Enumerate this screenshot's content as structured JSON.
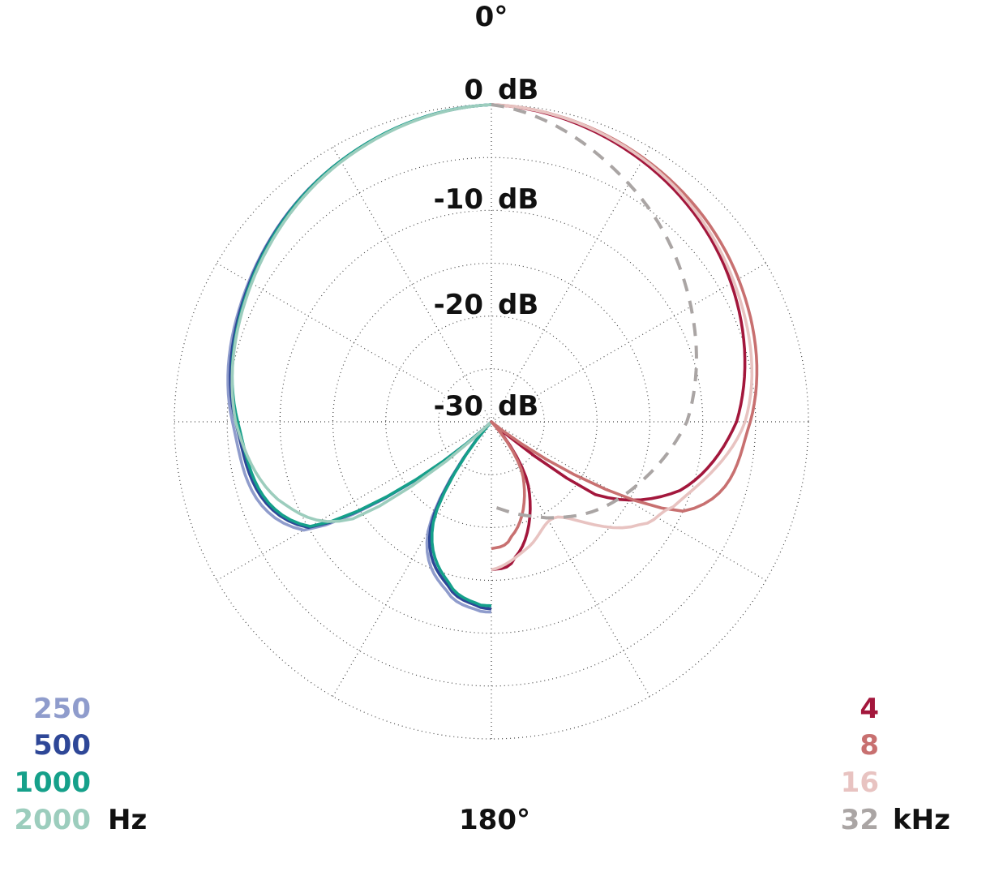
{
  "chart_data": {
    "type": "polar",
    "angle_labels": {
      "top": "0°",
      "bottom": "180°"
    },
    "radial_unit": "dB",
    "radial_range": [
      -30,
      0
    ],
    "radial_labels": [
      {
        "db": 0,
        "text": "0 dB"
      },
      {
        "db": -10,
        "text": "-10 dB"
      },
      {
        "db": -20,
        "text": "-20 dB"
      },
      {
        "db": -30,
        "text": "-30 dB"
      }
    ],
    "grid": true,
    "legend_left": {
      "unit": "Hz",
      "items": [
        {
          "label": "250",
          "color": "#8f9ccc"
        },
        {
          "label": "500",
          "color": "#2e4797"
        },
        {
          "label": "1000",
          "color": "#15a08a"
        },
        {
          "label": "2000",
          "color": "#9ccdbd"
        }
      ]
    },
    "legend_right": {
      "unit": "kHz",
      "items": [
        {
          "label": "4",
          "color": "#a3173c"
        },
        {
          "label": "8",
          "color": "#c87070"
        },
        {
          "label": "16",
          "color": "#e8c3c1"
        },
        {
          "label": "32",
          "color": "#aaa5a4"
        }
      ]
    },
    "series": [
      {
        "name": "250",
        "side": "left",
        "color": "#8f9ccc",
        "dash": false,
        "angles_deg": [
          0,
          30,
          60,
          90,
          120,
          135,
          150,
          165,
          175,
          180
        ],
        "db": [
          0,
          -1.5,
          -3.5,
          -5.5,
          -9.5,
          -30,
          -18,
          -13.5,
          -12.2,
          -12
        ]
      },
      {
        "name": "500",
        "side": "left",
        "color": "#2e4797",
        "dash": false,
        "angles_deg": [
          0,
          30,
          60,
          90,
          120,
          135,
          150,
          165,
          175,
          180
        ],
        "db": [
          0,
          -1.5,
          -3.6,
          -5.8,
          -10,
          -30,
          -18.5,
          -14,
          -12.6,
          -12.3
        ]
      },
      {
        "name": "1000",
        "side": "left",
        "color": "#15a08a",
        "dash": false,
        "angles_deg": [
          0,
          30,
          60,
          90,
          120,
          135,
          150,
          165,
          175,
          180
        ],
        "db": [
          0,
          -1.5,
          -3.7,
          -6,
          -10.2,
          -30,
          -19,
          -14.3,
          -12.8,
          -12.6
        ]
      },
      {
        "name": "2000",
        "side": "left",
        "color": "#9ccdbd",
        "dash": false,
        "angles_deg": [
          0,
          30,
          60,
          90,
          110,
          125,
          135
        ],
        "db": [
          0,
          -1.6,
          -3.8,
          -5.8,
          -8.5,
          -14,
          -30
        ]
      },
      {
        "name": "4",
        "side": "right",
        "color": "#a3173c",
        "dash": false,
        "angles_deg": [
          0,
          30,
          60,
          90,
          110,
          125,
          132,
          150,
          170,
          180
        ],
        "db": [
          0,
          -1.5,
          -3.8,
          -6.8,
          -11,
          -18,
          -30,
          -23,
          -17,
          -16
        ]
      },
      {
        "name": "8",
        "side": "right",
        "color": "#c87070",
        "dash": false,
        "angles_deg": [
          0,
          30,
          60,
          90,
          115,
          130,
          150,
          170,
          180
        ],
        "db": [
          0,
          -1.2,
          -3,
          -5.5,
          -10,
          -30,
          -24,
          -19,
          -18
        ]
      },
      {
        "name": "16",
        "side": "right",
        "color": "#e8c3c1",
        "dash": false,
        "angles_deg": [
          0,
          30,
          60,
          90,
          115,
          125,
          145,
          165,
          180
        ],
        "db": [
          0,
          -1.3,
          -3.5,
          -6,
          -11,
          -13,
          -19,
          -17.5,
          -16
        ]
      },
      {
        "name": "32",
        "side": "right",
        "color": "#aaa5a4",
        "dash": true,
        "angles_deg": [
          0,
          30,
          60,
          90,
          110,
          130,
          150,
          165,
          180
        ],
        "db": [
          0,
          -4,
          -8.2,
          -11.5,
          -14.5,
          -17,
          -19.5,
          -21,
          -22
        ]
      }
    ]
  }
}
